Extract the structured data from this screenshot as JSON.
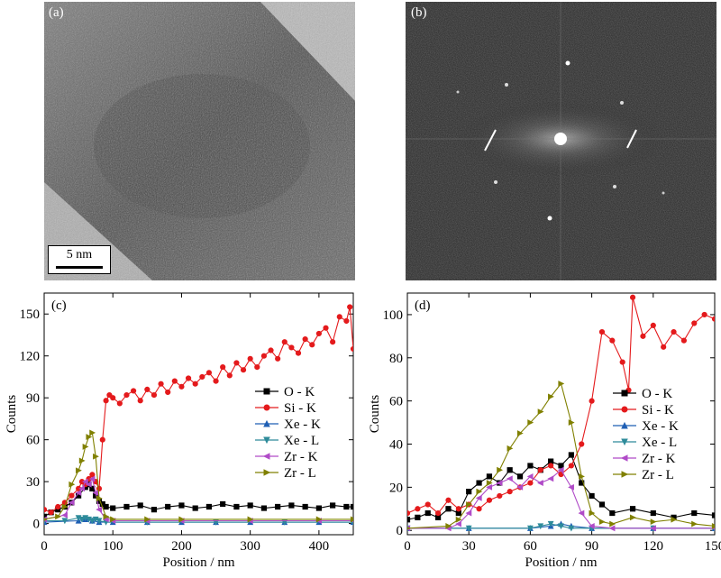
{
  "panels": {
    "a": {
      "label": "(a)",
      "scalebar": "5 nm"
    },
    "b": {
      "label": "(b)"
    }
  },
  "colors": {
    "O - K": "#000000",
    "Si - K": "#e41a1c",
    "Xe - K": "#1f5fb4",
    "Xe - L": "#2e8b9a",
    "Zr - K": "#b04bc8",
    "Zr - L": "#808000"
  },
  "chart_data": [
    {
      "type": "line",
      "label": "(c)",
      "xlabel": "Position / nm",
      "ylabel": "Counts",
      "xlim": [
        0,
        450
      ],
      "ylim": [
        -8,
        165
      ],
      "xticks": [
        0,
        100,
        200,
        300,
        400
      ],
      "yticks": [
        0,
        30,
        60,
        90,
        120,
        150
      ],
      "legend_position": "right",
      "series": [
        {
          "name": "O - K",
          "marker": "square",
          "x": [
            0,
            10,
            20,
            30,
            40,
            50,
            60,
            65,
            70,
            75,
            80,
            85,
            90,
            100,
            120,
            140,
            160,
            180,
            200,
            220,
            240,
            260,
            280,
            300,
            320,
            340,
            360,
            380,
            400,
            420,
            440,
            450
          ],
          "y": [
            5,
            8,
            10,
            12,
            15,
            20,
            26,
            28,
            25,
            20,
            16,
            14,
            12,
            11,
            12,
            13,
            10,
            12,
            13,
            11,
            12,
            14,
            12,
            13,
            11,
            12,
            13,
            12,
            11,
            13,
            12,
            12
          ]
        },
        {
          "name": "Si - K",
          "marker": "circle",
          "x": [
            0,
            10,
            20,
            30,
            40,
            50,
            55,
            60,
            65,
            70,
            75,
            80,
            85,
            90,
            95,
            100,
            110,
            120,
            130,
            140,
            150,
            160,
            170,
            180,
            190,
            200,
            210,
            220,
            230,
            240,
            250,
            260,
            270,
            280,
            290,
            300,
            310,
            320,
            330,
            340,
            350,
            360,
            370,
            380,
            390,
            400,
            410,
            420,
            430,
            440,
            445,
            450
          ],
          "y": [
            10,
            8,
            12,
            15,
            20,
            25,
            30,
            28,
            32,
            35,
            30,
            25,
            60,
            88,
            92,
            90,
            86,
            92,
            95,
            88,
            96,
            92,
            100,
            94,
            102,
            98,
            104,
            100,
            105,
            108,
            102,
            112,
            106,
            115,
            110,
            118,
            112,
            120,
            124,
            118,
            130,
            126,
            122,
            132,
            128,
            136,
            140,
            130,
            148,
            145,
            155,
            125
          ]
        },
        {
          "name": "Xe - K",
          "marker": "triangle-up",
          "x": [
            0,
            50,
            60,
            70,
            80,
            100,
            150,
            200,
            250,
            300,
            350,
            400,
            450
          ],
          "y": [
            1,
            2,
            3,
            2,
            1,
            1,
            1,
            1,
            1,
            1,
            1,
            1,
            1
          ]
        },
        {
          "name": "Xe - L",
          "marker": "triangle-down",
          "x": [
            0,
            30,
            50,
            55,
            60,
            65,
            70,
            75,
            80,
            90,
            150,
            250,
            350,
            450
          ],
          "y": [
            2,
            2,
            4,
            3,
            4,
            3,
            2,
            3,
            2,
            1,
            1,
            1,
            1,
            1
          ]
        },
        {
          "name": "Zr - K",
          "marker": "triangle-left",
          "x": [
            0,
            30,
            40,
            50,
            55,
            60,
            65,
            70,
            75,
            80,
            90,
            100,
            150,
            200,
            300,
            400,
            450
          ],
          "y": [
            3,
            6,
            15,
            22,
            25,
            30,
            28,
            32,
            22,
            10,
            3,
            2,
            2,
            2,
            2,
            2,
            2
          ]
        },
        {
          "name": "Zr - L",
          "marker": "triangle-right",
          "x": [
            0,
            20,
            30,
            40,
            50,
            55,
            60,
            65,
            70,
            75,
            80,
            90,
            100,
            150,
            200,
            300,
            400,
            450
          ],
          "y": [
            3,
            5,
            12,
            28,
            38,
            45,
            55,
            62,
            65,
            48,
            18,
            5,
            3,
            3,
            3,
            3,
            3,
            3
          ]
        }
      ]
    },
    {
      "type": "line",
      "label": "(d)",
      "xlabel": "Position / nm",
      "ylabel": "Counts",
      "xlim": [
        0,
        150
      ],
      "ylim": [
        -2,
        110
      ],
      "xticks": [
        0,
        30,
        60,
        90,
        120,
        150
      ],
      "yticks": [
        0,
        20,
        40,
        60,
        80,
        100
      ],
      "legend_position": "right",
      "series": [
        {
          "name": "O - K",
          "marker": "square",
          "x": [
            0,
            5,
            10,
            15,
            20,
            25,
            30,
            35,
            40,
            45,
            50,
            55,
            60,
            65,
            70,
            75,
            80,
            85,
            90,
            95,
            100,
            110,
            120,
            130,
            140,
            150
          ],
          "y": [
            5,
            6,
            8,
            6,
            10,
            8,
            18,
            22,
            25,
            22,
            28,
            25,
            30,
            28,
            32,
            30,
            35,
            22,
            16,
            12,
            8,
            10,
            8,
            6,
            8,
            7
          ]
        },
        {
          "name": "Si - K",
          "marker": "circle",
          "x": [
            0,
            5,
            10,
            15,
            20,
            25,
            30,
            35,
            40,
            45,
            50,
            55,
            60,
            65,
            70,
            75,
            80,
            85,
            90,
            95,
            100,
            105,
            108,
            110,
            115,
            120,
            125,
            130,
            135,
            140,
            145,
            150
          ],
          "y": [
            8,
            10,
            12,
            8,
            14,
            10,
            12,
            10,
            14,
            16,
            18,
            20,
            22,
            28,
            30,
            26,
            30,
            40,
            60,
            92,
            88,
            78,
            65,
            108,
            90,
            95,
            85,
            92,
            88,
            96,
            100,
            98
          ]
        },
        {
          "name": "Xe - K",
          "marker": "triangle-up",
          "x": [
            0,
            30,
            60,
            70,
            75,
            80,
            90,
            120,
            150
          ],
          "y": [
            1,
            1,
            1,
            2,
            3,
            2,
            1,
            1,
            1
          ]
        },
        {
          "name": "Xe - L",
          "marker": "triangle-down",
          "x": [
            0,
            30,
            60,
            65,
            70,
            75,
            80,
            90,
            120,
            150
          ],
          "y": [
            1,
            1,
            1,
            2,
            3,
            2,
            1,
            1,
            1,
            1
          ]
        },
        {
          "name": "Zr - K",
          "marker": "triangle-left",
          "x": [
            0,
            20,
            25,
            30,
            35,
            40,
            45,
            50,
            55,
            60,
            65,
            70,
            75,
            80,
            85,
            90,
            100,
            120,
            150
          ],
          "y": [
            1,
            1,
            3,
            8,
            15,
            20,
            22,
            24,
            20,
            25,
            22,
            24,
            28,
            20,
            8,
            2,
            1,
            1,
            1
          ]
        },
        {
          "name": "Zr - L",
          "marker": "triangle-right",
          "x": [
            0,
            20,
            25,
            30,
            35,
            40,
            45,
            50,
            55,
            60,
            65,
            70,
            75,
            80,
            85,
            90,
            95,
            100,
            110,
            120,
            130,
            140,
            150
          ],
          "y": [
            1,
            2,
            5,
            12,
            18,
            22,
            28,
            38,
            45,
            50,
            55,
            62,
            68,
            50,
            25,
            8,
            4,
            3,
            6,
            4,
            5,
            3,
            2
          ]
        }
      ]
    }
  ]
}
